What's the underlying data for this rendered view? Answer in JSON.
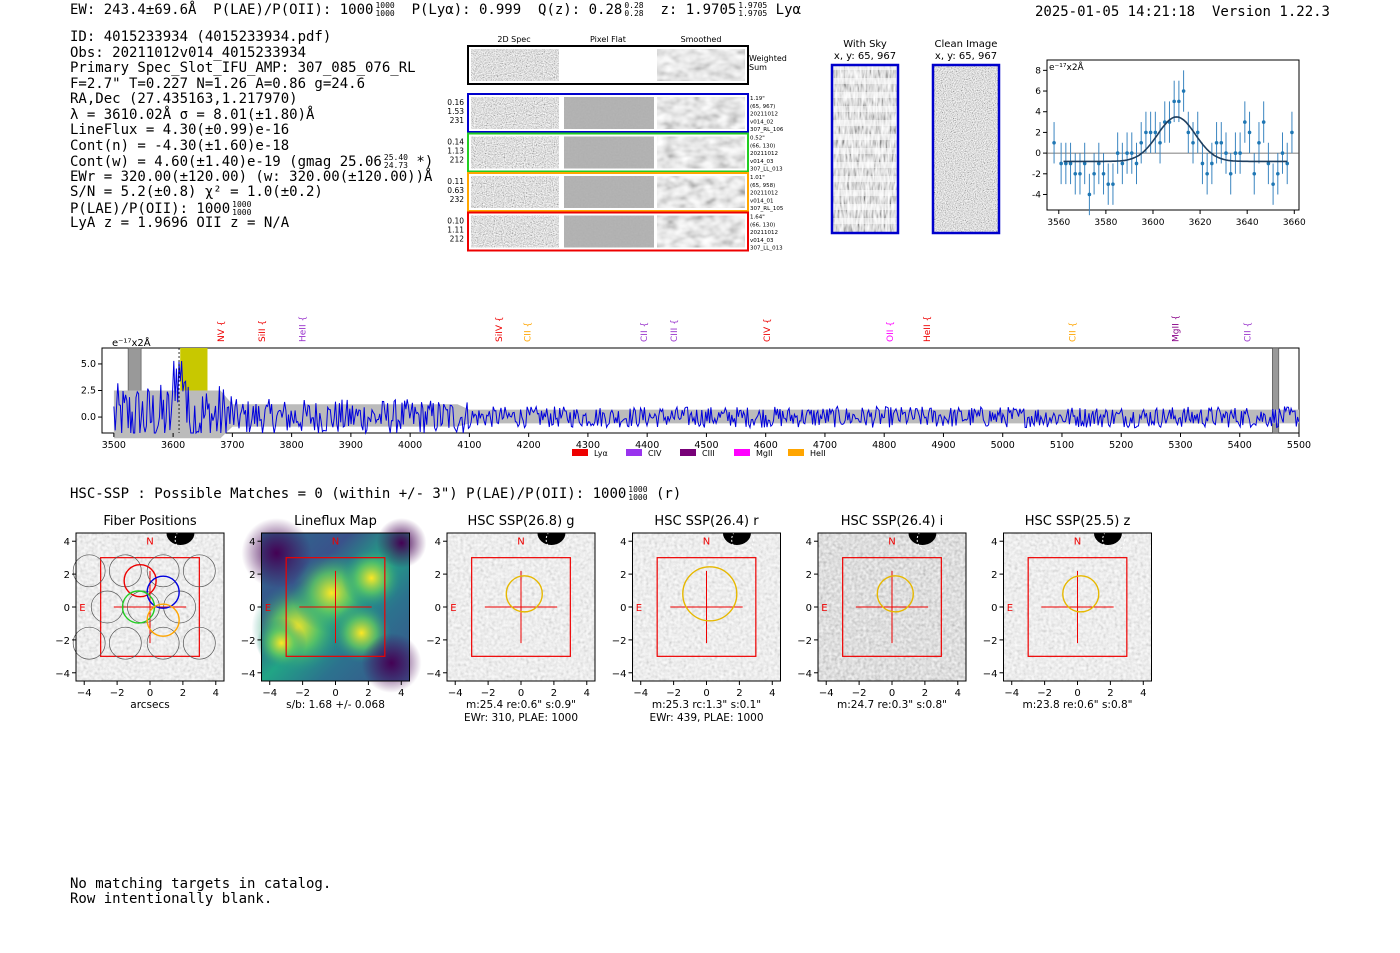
{
  "header": {
    "ew": "EW: 243.4±69.6Å",
    "plae_label": "P(LAE)/P(OII): 1000",
    "plae_hi": "1000",
    "plae_lo": "1000",
    "plya": "P(Lyα): 0.999",
    "qz": "Q(z): 0.28",
    "qz_hi": "0.28",
    "qz_lo": "0.28",
    "z": "z: 1.9705",
    "z_hi": "1.9705",
    "z_lo": "1.9705",
    "line": "Lyα",
    "timestamp": "2025-01-05 14:21:18",
    "version": "Version 1.22.3"
  },
  "info": {
    "id": "ID: 4015233934 (4015233934.pdf)",
    "obs": "Obs: 20211012v014_4015233934",
    "primary": "Primary Spec_Slot_IFU_AMP: 307_085_076_RL",
    "params": "F=2.7\"  T=0.227  N=1.26  A=0.86  g=24.6",
    "radec": "RA,Dec (27.435163,1.217970)",
    "lambda": "λ = 3610.02Å  σ = 8.01(±1.80)Å",
    "lineflux": "LineFlux = 4.30(±0.99)e-16",
    "contn": "Cont(n) = -4.30(±1.60)e-18",
    "contw": "Cont(w) = 4.60(±1.40)e-19 (gmag 25.06",
    "contw_hi": "25.40",
    "contw_lo": "24.73",
    "contw_end": "*)",
    "ewr": "EWr = 320.00(±120.00) (w: 320.00(±120.00))Å",
    "sn": "S/N = 5.2(±0.8)  χ² = 1.0(±0.2)",
    "plae": "P(LAE)/P(OII): 1000",
    "plae_hi": "1000",
    "plae_lo": "1000",
    "lyaz": "LyA z = 1.9696  OII z = N/A"
  },
  "cutouts": {
    "col_titles": [
      "2D Spec",
      "Pixel Flat",
      "Smoothed"
    ],
    "weighted_sum": [
      "Weighted",
      "Sum"
    ],
    "rows": [
      {
        "left": [
          "0.16",
          "1.53",
          "231"
        ],
        "right": [
          "1.19\"",
          "(65, 967)",
          "20211012",
          "v014_02",
          "307_RL_106"
        ],
        "color": "#0000cc"
      },
      {
        "left": [
          "0.14",
          "1.13",
          "212"
        ],
        "right": [
          "0.52\"",
          "(66, 130)",
          "20211012",
          "v014_03",
          "307_LL_013"
        ],
        "color": "#22cc22"
      },
      {
        "left": [
          "0.11",
          "0.63",
          "232"
        ],
        "right": [
          "1.01\"",
          "(65, 958)",
          "20211012",
          "v014_01",
          "307_RL_105"
        ],
        "color": "#ffa500"
      },
      {
        "left": [
          "0.10",
          "1.11",
          "212"
        ],
        "right": [
          "1.64\"",
          "(66, 130)",
          "20211012",
          "v014_03",
          "307_LL_013"
        ],
        "color": "#ee0000"
      }
    ],
    "with_sky": [
      "With Sky",
      "x, y: 65, 967"
    ],
    "clean_image": [
      "Clean Image",
      "x, y: 65, 967"
    ]
  },
  "chart_data": [
    {
      "type": "scatter",
      "title": "",
      "ylabel": "e⁻¹⁷x2Å",
      "xlim": [
        3555,
        3662
      ],
      "ylim": [
        -5.5,
        9
      ],
      "xticks": [
        "3560",
        "3580",
        "3600",
        "3620",
        "3640",
        "3660"
      ],
      "yticks": [
        "-4",
        "-2",
        "0",
        "2",
        "4",
        "6",
        "8"
      ],
      "x": [
        3558,
        3561,
        3563,
        3565,
        3567,
        3569,
        3571,
        3573,
        3575,
        3577,
        3579,
        3581,
        3583,
        3585,
        3587,
        3589,
        3591,
        3593,
        3595,
        3597,
        3599,
        3601,
        3603,
        3605,
        3607,
        3609,
        3611,
        3613,
        3615,
        3617,
        3619,
        3621,
        3623,
        3625,
        3627,
        3629,
        3631,
        3633,
        3635,
        3637,
        3639,
        3641,
        3643,
        3645,
        3647,
        3649,
        3651,
        3653,
        3655,
        3657,
        3659
      ],
      "y": [
        1,
        -1,
        -1,
        -1,
        -2,
        -2,
        -1,
        -4,
        -2,
        -1,
        -2,
        -3,
        -3,
        0,
        -1,
        0,
        0,
        -1,
        1,
        2,
        2,
        2,
        1,
        3,
        3,
        5,
        5,
        6,
        2,
        1,
        2,
        -1,
        -2,
        -1,
        1,
        1,
        0,
        -2,
        0,
        0,
        3,
        2,
        -2,
        1,
        3,
        -1,
        -3,
        -2,
        0,
        -1,
        2
      ],
      "err": [
        2,
        2,
        2,
        2,
        2,
        2,
        2,
        2,
        2,
        2,
        2,
        2,
        2,
        2,
        2,
        2,
        2,
        2,
        2,
        2,
        2,
        2,
        2,
        2,
        2,
        2,
        2,
        2,
        2,
        2,
        2,
        2,
        2,
        2,
        2,
        2,
        2,
        2,
        2,
        2,
        2,
        2,
        2,
        2,
        2,
        2,
        2,
        2,
        2,
        2,
        2
      ],
      "fit": {
        "center": 3610,
        "sigma": 8,
        "amp": 4.3,
        "baseline": -0.8
      }
    },
    {
      "type": "line",
      "ylabel": "e⁻¹⁷x2Å",
      "xlim": [
        3480,
        5500
      ],
      "ylim": [
        -1.5,
        6.5
      ],
      "xticks": [
        "3500",
        "3600",
        "3700",
        "3800",
        "3900",
        "4000",
        "4100",
        "4200",
        "4300",
        "4400",
        "4500",
        "4600",
        "4700",
        "4800",
        "4900",
        "5000",
        "5100",
        "5200",
        "5300",
        "5400",
        "5500"
      ],
      "yticks": [
        "0.0",
        "2.5",
        "5.0"
      ],
      "highlight": [
        3610,
        3660
      ],
      "emission_lines": [
        {
          "name": "NV",
          "x": 3681,
          "color": "#ee0000"
        },
        {
          "name": "SiII",
          "x": 3750,
          "color": "#ee0000"
        },
        {
          "name": "HeII",
          "x": 3818,
          "color": "#9933cc"
        },
        {
          "name": "SiIV",
          "x": 4150,
          "color": "#ee0000"
        },
        {
          "name": "CII",
          "x": 4198,
          "color": "#ffa500"
        },
        {
          "name": "CII",
          "x": 4395,
          "color": "#9933cc"
        },
        {
          "name": "CIII",
          "x": 4445,
          "color": "#9933cc"
        },
        {
          "name": "CIV",
          "x": 4602,
          "color": "#ee0000"
        },
        {
          "name": "OII",
          "x": 4810,
          "color": "#ff00ff"
        },
        {
          "name": "HeII",
          "x": 4872,
          "color": "#ee0000"
        },
        {
          "name": "CII",
          "x": 5118,
          "color": "#ffa500"
        },
        {
          "name": "MgII",
          "x": 5292,
          "color": "#880088"
        },
        {
          "name": "CII",
          "x": 5413,
          "color": "#9933cc"
        }
      ],
      "legend": [
        {
          "name": "Lyα",
          "color": "#ee0000"
        },
        {
          "name": "CIV",
          "color": "#9933ee"
        },
        {
          "name": "CIII",
          "color": "#770077"
        },
        {
          "name": "MgII",
          "color": "#ff00ff"
        },
        {
          "name": "HeII",
          "color": "#ffa500"
        }
      ]
    },
    {
      "type": "heatmap",
      "title": "Fiber Positions",
      "xlabel": "arcsecs",
      "xticks": [
        "−4",
        "−2",
        "0",
        "2",
        "4"
      ],
      "yticks": [
        "4",
        "2",
        "0",
        "−2",
        "−4"
      ]
    }
  ],
  "hsc": {
    "summary": "HSC-SSP : Possible Matches = 0 (within +/- 3\")  P(LAE)/P(OII): 1000",
    "summary_hi": "1000",
    "summary_lo": "1000",
    "summary_end": "(r)",
    "panels": [
      {
        "title": "Fiber Positions",
        "sub1": "arcsecs",
        "sub2": ""
      },
      {
        "title": "Lineflux Map",
        "sub1": "s/b: 1.68 +/- 0.068",
        "sub2": ""
      },
      {
        "title": "HSC SSP(26.8) g",
        "sub1": "m:25.4  re:0.6\"  s:0.9\"",
        "sub2": "EWr: 310, PLAE: 1000"
      },
      {
        "title": "HSC SSP(26.4) r",
        "sub1": "m:25.3  rc:1.3\"  s:0.1\"",
        "sub2": "EWr: 439, PLAE: 1000"
      },
      {
        "title": "HSC SSP(26.4) i",
        "sub1": "m:24.7  re:0.3\"  s:0.8\"",
        "sub2": ""
      },
      {
        "title": "HSC SSP(25.5) z",
        "sub1": "m:23.8  re:0.6\"  s:0.8\"",
        "sub2": ""
      }
    ],
    "north": "N",
    "east": "E"
  },
  "notes": "No matching targets in catalog.\nRow intentionally blank."
}
